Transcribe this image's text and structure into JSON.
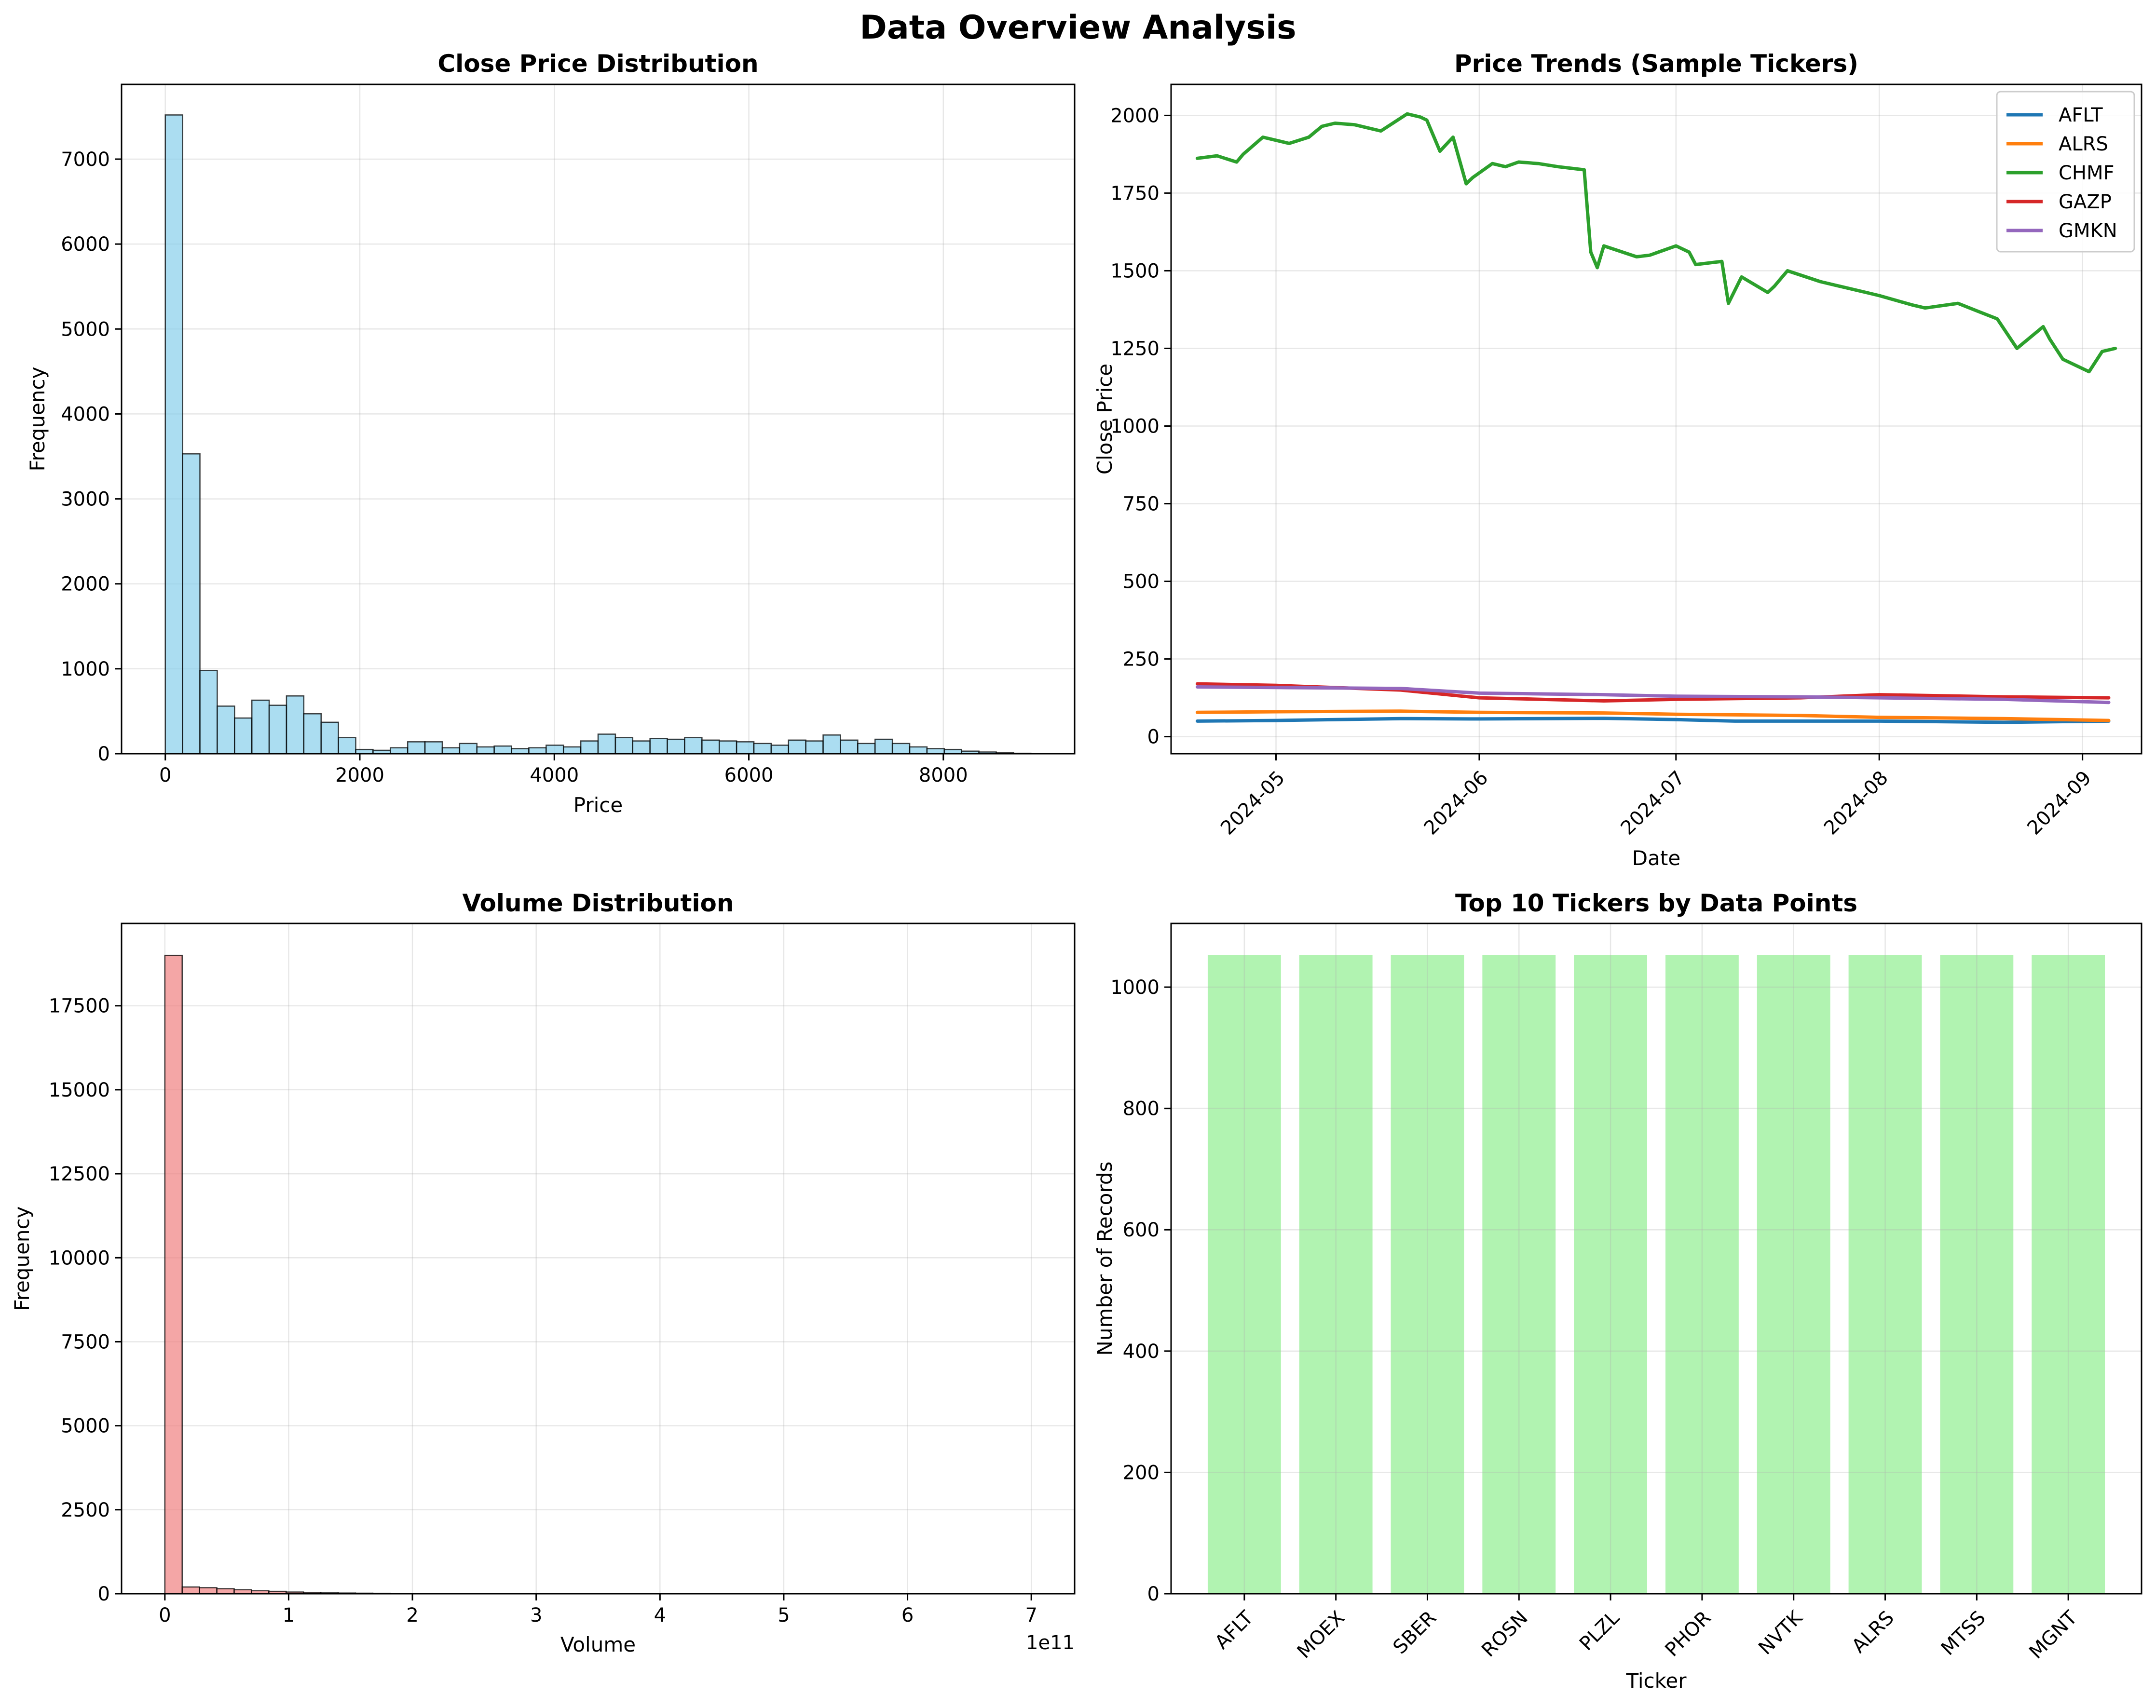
{
  "figure": {
    "title": "Data Overview Analysis"
  },
  "chart_data": [
    {
      "id": "close_hist",
      "type": "bar",
      "subtype": "histogram",
      "title": "Close Price Distribution",
      "xlabel": "Price",
      "ylabel": "Frequency",
      "xlim": [
        -450,
        9350
      ],
      "ylim": [
        0,
        7880
      ],
      "xticks": [
        0,
        2000,
        4000,
        6000,
        8000
      ],
      "yticks": [
        0,
        1000,
        2000,
        3000,
        4000,
        5000,
        6000,
        7000
      ],
      "grid": true,
      "bin_start": 0,
      "bin_width": 178,
      "color": "#87ceeb",
      "values": [
        7520,
        3530,
        980,
        560,
        420,
        630,
        570,
        680,
        470,
        370,
        190,
        50,
        40,
        70,
        140,
        140,
        70,
        120,
        80,
        90,
        60,
        70,
        100,
        80,
        150,
        230,
        190,
        150,
        180,
        170,
        190,
        160,
        150,
        140,
        120,
        100,
        160,
        150,
        220,
        160,
        120,
        170,
        120,
        80,
        60,
        50,
        30,
        20,
        10,
        5
      ]
    },
    {
      "id": "price_trends",
      "type": "line",
      "title": "Price Trends (Sample Tickers)",
      "xlabel": "Date",
      "ylabel": "Close Price",
      "xticks": [
        "2024-05",
        "2024-06",
        "2024-07",
        "2024-08",
        "2024-09"
      ],
      "xlim": [
        "2024-04-15",
        "2024-09-10"
      ],
      "ylim": [
        -55,
        2100
      ],
      "yticks": [
        0,
        250,
        500,
        750,
        1000,
        1250,
        1500,
        1750,
        2000
      ],
      "grid": true,
      "legend": "top-right",
      "series": [
        {
          "name": "AFLT",
          "color": "#1f77b4",
          "x": [
            "2024-04-19",
            "2024-05-01",
            "2024-05-20",
            "2024-06-01",
            "2024-06-20",
            "2024-07-01",
            "2024-07-10",
            "2024-08-01",
            "2024-08-20",
            "2024-09-05"
          ],
          "y": [
            50,
            52,
            58,
            57,
            59,
            55,
            50,
            50,
            46,
            50
          ]
        },
        {
          "name": "ALRS",
          "color": "#ff7f0e",
          "x": [
            "2024-04-19",
            "2024-05-01",
            "2024-05-20",
            "2024-06-01",
            "2024-06-20",
            "2024-07-01",
            "2024-07-20",
            "2024-08-01",
            "2024-08-20",
            "2024-09-05"
          ],
          "y": [
            78,
            80,
            82,
            78,
            76,
            72,
            68,
            62,
            58,
            52
          ]
        },
        {
          "name": "CHMF",
          "color": "#2ca02c",
          "x": [
            "2024-04-19",
            "2024-04-22",
            "2024-04-25",
            "2024-04-26",
            "2024-04-29",
            "2024-04-30",
            "2024-05-03",
            "2024-05-06",
            "2024-05-08",
            "2024-05-10",
            "2024-05-13",
            "2024-05-15",
            "2024-05-17",
            "2024-05-21",
            "2024-05-23",
            "2024-05-24",
            "2024-05-26",
            "2024-05-28",
            "2024-05-30",
            "2024-05-31",
            "2024-06-03",
            "2024-06-05",
            "2024-06-07",
            "2024-06-10",
            "2024-06-13",
            "2024-06-17",
            "2024-06-18",
            "2024-06-19",
            "2024-06-20",
            "2024-06-25",
            "2024-06-27",
            "2024-07-01",
            "2024-07-03",
            "2024-07-04",
            "2024-07-08",
            "2024-07-09",
            "2024-07-11",
            "2024-07-15",
            "2024-07-16",
            "2024-07-18",
            "2024-07-23",
            "2024-07-26",
            "2024-07-30",
            "2024-08-01",
            "2024-08-06",
            "2024-08-08",
            "2024-08-13",
            "2024-08-16",
            "2024-08-19",
            "2024-08-22",
            "2024-08-26",
            "2024-08-27",
            "2024-08-29",
            "2024-09-02",
            "2024-09-04",
            "2024-09-06"
          ],
          "y": [
            1862,
            1870,
            1850,
            1875,
            1930,
            1925,
            1910,
            1930,
            1965,
            1975,
            1970,
            1960,
            1950,
            2005,
            1995,
            1985,
            1885,
            1930,
            1780,
            1800,
            1845,
            1835,
            1850,
            1845,
            1835,
            1825,
            1560,
            1510,
            1580,
            1545,
            1550,
            1580,
            1560,
            1520,
            1530,
            1395,
            1480,
            1430,
            1450,
            1500,
            1465,
            1450,
            1430,
            1420,
            1390,
            1380,
            1395,
            1370,
            1345,
            1250,
            1320,
            1280,
            1215,
            1175,
            1240,
            1250
          ]
        },
        {
          "name": "GAZP",
          "color": "#d62728",
          "x": [
            "2024-04-19",
            "2024-05-01",
            "2024-05-20",
            "2024-06-01",
            "2024-06-20",
            "2024-07-01",
            "2024-07-20",
            "2024-08-01",
            "2024-08-20",
            "2024-09-05"
          ],
          "y": [
            170,
            165,
            150,
            125,
            115,
            120,
            125,
            135,
            128,
            125
          ]
        },
        {
          "name": "GMKN",
          "color": "#9467bd",
          "x": [
            "2024-04-19",
            "2024-05-01",
            "2024-05-20",
            "2024-06-01",
            "2024-06-20",
            "2024-07-01",
            "2024-07-20",
            "2024-08-01",
            "2024-08-20",
            "2024-09-05"
          ],
          "y": [
            160,
            158,
            155,
            140,
            135,
            130,
            128,
            125,
            120,
            110
          ]
        }
      ]
    },
    {
      "id": "volume_hist",
      "type": "bar",
      "subtype": "histogram",
      "title": "Volume Distribution",
      "xlabel": "Volume",
      "ylabel": "Frequency",
      "offset_text": "1e11",
      "xlim": [
        -0.35,
        7.35
      ],
      "ylim": [
        0,
        19950
      ],
      "xticks": [
        0,
        1,
        2,
        3,
        4,
        5,
        6,
        7
      ],
      "yticks": [
        0,
        2500,
        5000,
        7500,
        10000,
        12500,
        15000,
        17500
      ],
      "grid": true,
      "bin_start": 0,
      "bin_width": 0.14,
      "color": "#f08080",
      "values": [
        19000,
        200,
        180,
        150,
        120,
        90,
        70,
        50,
        35,
        25,
        20,
        15,
        12,
        10,
        8,
        6,
        5,
        4,
        3,
        3,
        2,
        2,
        2,
        1,
        1,
        1,
        1,
        1,
        1,
        1,
        0,
        0,
        0,
        0,
        0,
        0,
        0,
        0,
        0,
        0,
        0,
        0,
        0,
        0,
        0,
        0,
        0,
        0,
        0,
        1
      ]
    },
    {
      "id": "top_tickers",
      "type": "bar",
      "title": "Top 10 Tickers by Data Points",
      "xlabel": "Ticker",
      "ylabel": "Number of Records",
      "ylim": [
        0,
        1105
      ],
      "yticks": [
        0,
        200,
        400,
        600,
        800,
        1000
      ],
      "grid": true,
      "color": "#90ee90",
      "categories": [
        "AFLT",
        "MOEX",
        "SBER",
        "ROSN",
        "PLZL",
        "PHOR",
        "NVTK",
        "ALRS",
        "MTSS",
        "MGNT"
      ],
      "values": [
        1053,
        1053,
        1053,
        1053,
        1053,
        1053,
        1053,
        1053,
        1053,
        1053
      ]
    }
  ]
}
